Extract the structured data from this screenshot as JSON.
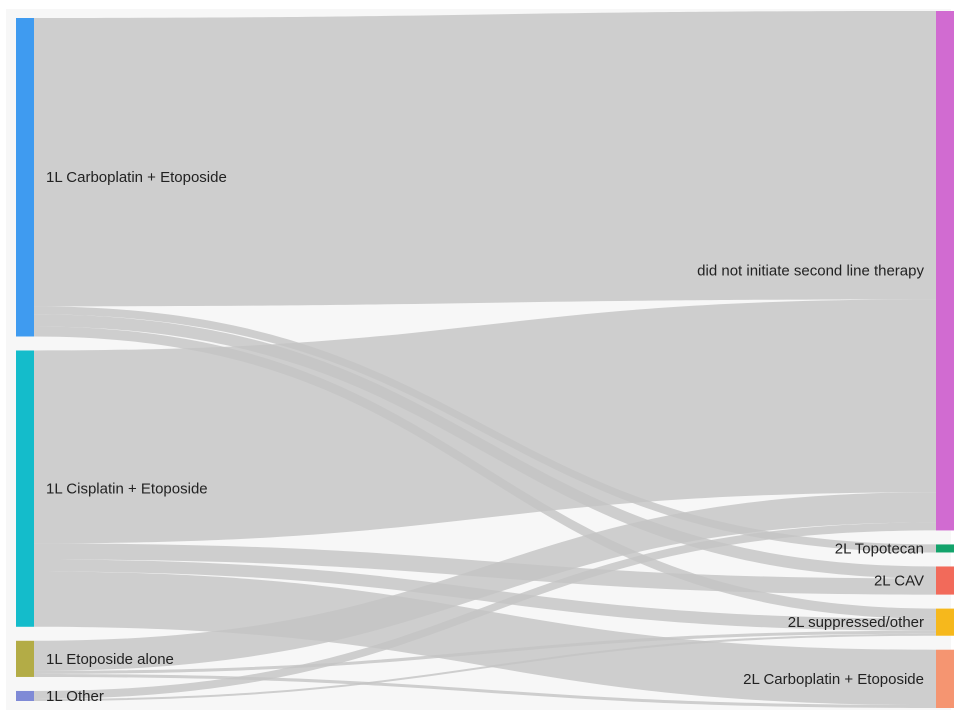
{
  "chart_data": {
    "type": "sankey",
    "colors": {
      "background": "#f7f7f7",
      "link": "#c4c4c4"
    },
    "nodes": [
      {
        "id": "1L Carboplatin + Etoposide",
        "label": "1L Carboplatin + Etoposide",
        "side": "left",
        "color": "#3f9bf0"
      },
      {
        "id": "1L Cisplatin + Etoposide",
        "label": "1L Cisplatin + Etoposide",
        "side": "left",
        "color": "#14bccb"
      },
      {
        "id": "1L Etoposide alone",
        "label": "1L Etoposide alone",
        "side": "left",
        "color": "#b3ac46"
      },
      {
        "id": "1L Other",
        "label": "1L Other",
        "side": "left",
        "color": "#7f8ad6"
      },
      {
        "id": "did not initiate second line therapy",
        "label": "did not initiate second line therapy",
        "side": "right",
        "color": "#d16bd1"
      },
      {
        "id": "2L Topotecan",
        "label": "2L Topotecan",
        "side": "right",
        "color": "#13a36b"
      },
      {
        "id": "2L CAV",
        "label": "2L CAV",
        "side": "right",
        "color": "#f26a5a"
      },
      {
        "id": "2L suppressed/other",
        "label": "2L suppressed/other",
        "side": "right",
        "color": "#f6b81c"
      },
      {
        "id": "2L Carboplatin + Etoposide",
        "label": "2L Carboplatin + Etoposide",
        "side": "right",
        "color": "#f59571"
      }
    ],
    "links": [
      {
        "source": "1L Carboplatin + Etoposide",
        "target": "did not initiate second line therapy",
        "value": 287
      },
      {
        "source": "1L Carboplatin + Etoposide",
        "target": "2L Topotecan",
        "value": 8
      },
      {
        "source": "1L Carboplatin + Etoposide",
        "target": "2L CAV",
        "value": 12
      },
      {
        "source": "1L Carboplatin + Etoposide",
        "target": "2L suppressed/other",
        "value": 10
      },
      {
        "source": "1L Cisplatin + Etoposide",
        "target": "did not initiate second line therapy",
        "value": 192
      },
      {
        "source": "1L Cisplatin + Etoposide",
        "target": "2L CAV",
        "value": 16
      },
      {
        "source": "1L Cisplatin + Etoposide",
        "target": "2L suppressed/other",
        "value": 12
      },
      {
        "source": "1L Cisplatin + Etoposide",
        "target": "2L Carboplatin + Etoposide",
        "value": 55
      },
      {
        "source": "1L Etoposide alone",
        "target": "did not initiate second line therapy",
        "value": 30
      },
      {
        "source": "1L Etoposide alone",
        "target": "2L suppressed/other",
        "value": 3
      },
      {
        "source": "1L Etoposide alone",
        "target": "2L Carboplatin + Etoposide",
        "value": 3
      },
      {
        "source": "1L Other",
        "target": "did not initiate second line therapy",
        "value": 8
      },
      {
        "source": "1L Other",
        "target": "2L suppressed/other",
        "value": 2
      }
    ]
  }
}
